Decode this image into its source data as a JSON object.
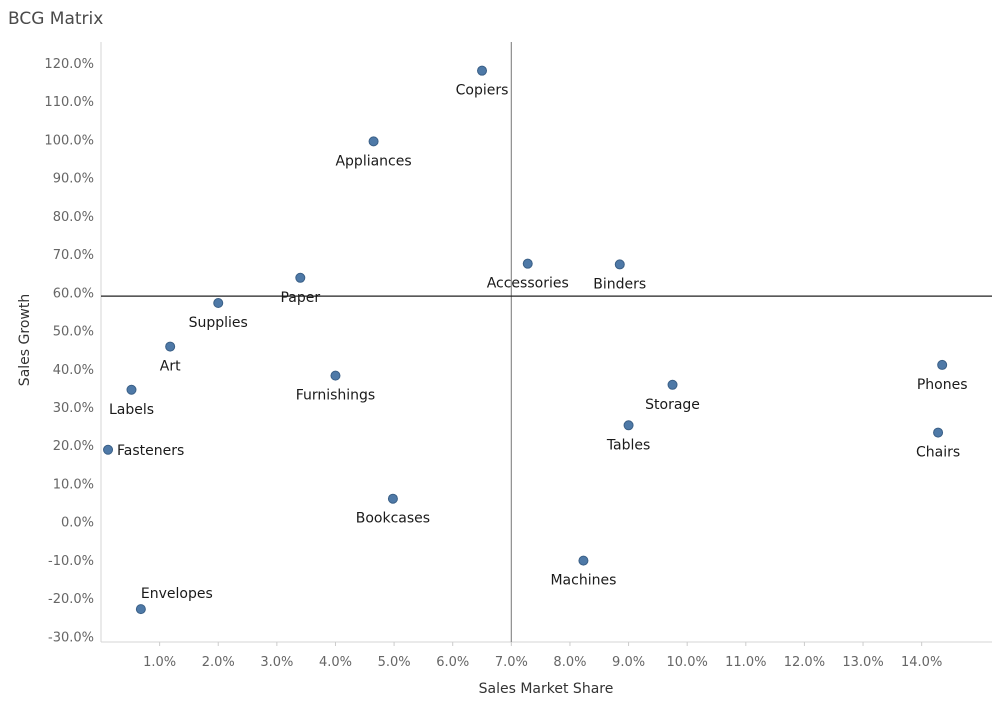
{
  "chart_data": {
    "type": "scatter",
    "title": "BCG Matrix",
    "xlabel": "Sales Market Share",
    "ylabel": "Sales Growth",
    "xlim": [
      0.0,
      15.2
    ],
    "ylim": [
      -31.5,
      125.5
    ],
    "x_ticks": [
      "1.0%",
      "2.0%",
      "3.0%",
      "4.0%",
      "5.0%",
      "6.0%",
      "7.0%",
      "8.0%",
      "9.0%",
      "10.0%",
      "11.0%",
      "12.0%",
      "13.0%",
      "14.0%"
    ],
    "y_ticks": [
      "120.0%",
      "110.0%",
      "100.0%",
      "90.0%",
      "80.0%",
      "70.0%",
      "60.0%",
      "50.0%",
      "40.0%",
      "30.0%",
      "20.0%",
      "10.0%",
      "0.0%",
      "-10.0%",
      "-20.0%",
      "-30.0%"
    ],
    "reference_lines": {
      "x": 7.0,
      "y": 59.0
    },
    "grid": false,
    "points": [
      {
        "name": "Copiers",
        "x": 6.5,
        "y": 118.0,
        "label_pos": "below"
      },
      {
        "name": "Appliances",
        "x": 4.65,
        "y": 99.5,
        "label_pos": "below"
      },
      {
        "name": "Accessories",
        "x": 7.28,
        "y": 67.5,
        "label_pos": "below"
      },
      {
        "name": "Binders",
        "x": 8.85,
        "y": 67.3,
        "label_pos": "below"
      },
      {
        "name": "Paper",
        "x": 3.4,
        "y": 63.8,
        "label_pos": "below"
      },
      {
        "name": "Supplies",
        "x": 2.0,
        "y": 57.2,
        "label_pos": "below"
      },
      {
        "name": "Art",
        "x": 1.18,
        "y": 45.8,
        "label_pos": "below"
      },
      {
        "name": "Labels",
        "x": 0.52,
        "y": 34.5,
        "label_pos": "below"
      },
      {
        "name": "Furnishings",
        "x": 4.0,
        "y": 38.2,
        "label_pos": "below"
      },
      {
        "name": "Fasteners",
        "x": 0.12,
        "y": 18.8,
        "label_pos": "right"
      },
      {
        "name": "Bookcases",
        "x": 4.98,
        "y": 6.0,
        "label_pos": "below"
      },
      {
        "name": "Envelopes",
        "x": 0.68,
        "y": -22.9,
        "label_pos": "above"
      },
      {
        "name": "Machines",
        "x": 8.23,
        "y": -10.2,
        "label_pos": "below"
      },
      {
        "name": "Storage",
        "x": 9.75,
        "y": 35.8,
        "label_pos": "below"
      },
      {
        "name": "Tables",
        "x": 9.0,
        "y": 25.2,
        "label_pos": "below"
      },
      {
        "name": "Phones",
        "x": 14.35,
        "y": 41.0,
        "label_pos": "below"
      },
      {
        "name": "Chairs",
        "x": 14.28,
        "y": 23.3,
        "label_pos": "below"
      }
    ]
  }
}
